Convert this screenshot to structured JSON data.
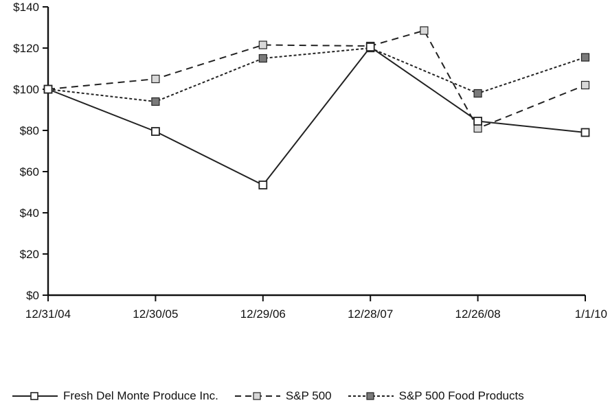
{
  "chart_data": {
    "type": "line",
    "title": "",
    "xlabel": "",
    "ylabel": "",
    "ylim": [
      0,
      140
    ],
    "yticks": [
      "$0",
      "$20",
      "$40",
      "$60",
      "$80",
      "$100",
      "$120",
      "$140"
    ],
    "ytick_values": [
      0,
      20,
      40,
      60,
      80,
      100,
      120,
      140
    ],
    "categories": [
      "12/31/04",
      "12/30/05",
      "12/29/06",
      "12/28/07",
      "12/26/08",
      "1/1/10"
    ],
    "grid": false,
    "legend_position": "bottom",
    "series": [
      {
        "name": "Fresh Del Monte Produce Inc.",
        "style": "solid",
        "marker_fill": "#ffffff",
        "color": "#222222",
        "points": [
          {
            "x": "12/31/04",
            "y": 100
          },
          {
            "x": "12/30/05",
            "y": 79.5
          },
          {
            "x": "12/29/06",
            "y": 53.5
          },
          {
            "x": "12/28/07",
            "y": 120.5
          },
          {
            "x": "12/26/08",
            "y": 84.5
          },
          {
            "x": "1/1/10",
            "y": 79
          }
        ]
      },
      {
        "name": "S&P 500",
        "style": "dashed",
        "marker_fill": "#d8d8d8",
        "color": "#222222",
        "points": [
          {
            "x": "12/31/04",
            "y": 100
          },
          {
            "x": "12/30/05",
            "y": 105
          },
          {
            "x": "12/29/06",
            "y": 121.5
          },
          {
            "x": "12/28/07",
            "y": 121
          },
          {
            "x": "6/27/08",
            "y": 128.5
          },
          {
            "x": "12/26/08",
            "y": 81
          },
          {
            "x": "1/1/10",
            "y": 102
          }
        ]
      },
      {
        "name": "S&P 500 Food Products",
        "style": "dotted",
        "marker_fill": "#7a7a7a",
        "color": "#222222",
        "points": [
          {
            "x": "12/31/04",
            "y": 100
          },
          {
            "x": "12/30/05",
            "y": 94
          },
          {
            "x": "12/29/06",
            "y": 115
          },
          {
            "x": "12/28/07",
            "y": 120
          },
          {
            "x": "12/26/08",
            "y": 98
          },
          {
            "x": "1/1/10",
            "y": 115.5
          }
        ]
      }
    ]
  }
}
